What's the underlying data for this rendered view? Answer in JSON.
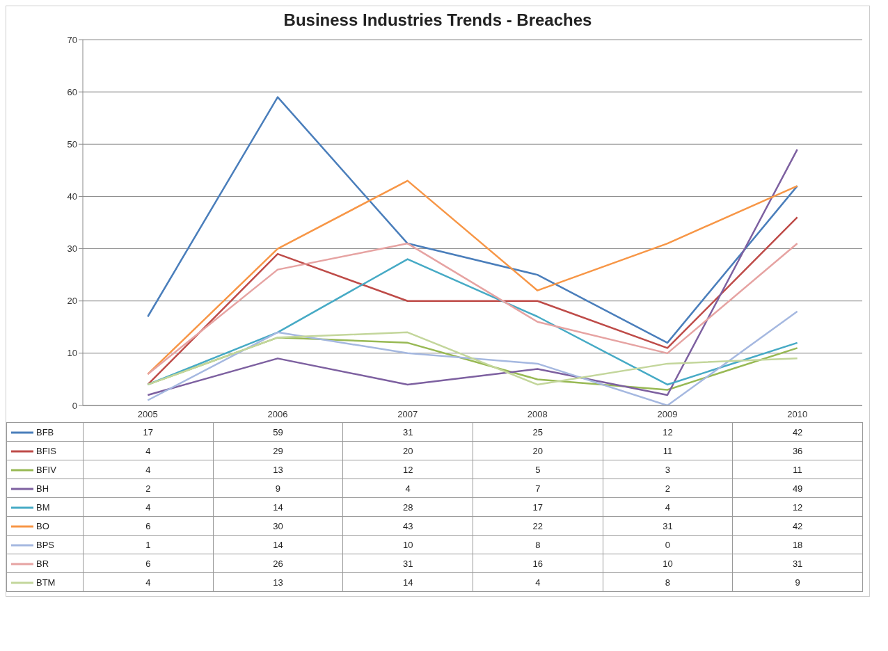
{
  "chart_data": {
    "type": "line",
    "title": "Business Industries Trends - Breaches",
    "categories": [
      "2005",
      "2006",
      "2007",
      "2008",
      "2009",
      "2010"
    ],
    "series": [
      {
        "name": "BFB",
        "color": "#4a7ebb",
        "values": [
          17,
          59,
          31,
          25,
          12,
          42
        ]
      },
      {
        "name": "BFIS",
        "color": "#be4b48",
        "values": [
          4,
          29,
          20,
          20,
          11,
          36
        ]
      },
      {
        "name": "BFIV",
        "color": "#98b954",
        "values": [
          4,
          13,
          12,
          5,
          3,
          11
        ]
      },
      {
        "name": "BH",
        "color": "#7d60a0",
        "values": [
          2,
          9,
          4,
          7,
          2,
          49
        ]
      },
      {
        "name": "BM",
        "color": "#46aac5",
        "values": [
          4,
          14,
          28,
          17,
          4,
          12
        ]
      },
      {
        "name": "BO",
        "color": "#f79646",
        "values": [
          6,
          30,
          43,
          22,
          31,
          42
        ]
      },
      {
        "name": "BPS",
        "color": "#a5b8e0",
        "values": [
          1,
          14,
          10,
          8,
          0,
          18
        ]
      },
      {
        "name": "BR",
        "color": "#e6a3a2",
        "values": [
          6,
          26,
          31,
          16,
          10,
          31
        ]
      },
      {
        "name": "BTM",
        "color": "#c3d69b",
        "values": [
          4,
          13,
          14,
          4,
          8,
          9
        ]
      }
    ],
    "ylim": [
      0,
      70
    ],
    "yticks": [
      0,
      10,
      20,
      30,
      40,
      50,
      60,
      70
    ],
    "grid": "y",
    "legend": "bottom",
    "data_labels": true,
    "marker": "none",
    "line_style": "solid"
  }
}
